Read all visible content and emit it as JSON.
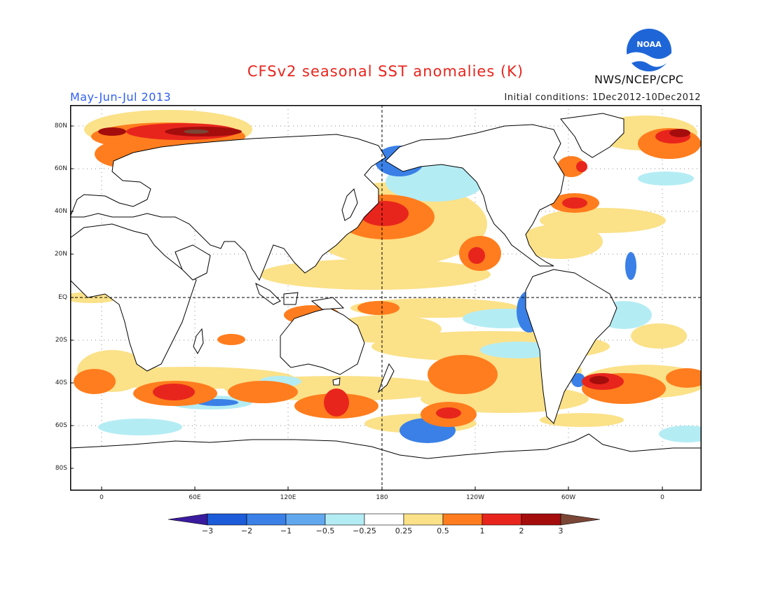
{
  "header": {
    "title": "CFSv2 seasonal SST anomalies (K)",
    "period": "May-Jun-Jul 2013",
    "initial_conditions": "Initial conditions: 1Dec2012-10Dec2012",
    "organization": "NWS/NCEP/CPC",
    "logo_text": "NOAA"
  },
  "map": {
    "lat_labels": [
      "80N",
      "60N",
      "40N",
      "20N",
      "EQ",
      "20S",
      "40S",
      "60S",
      "80S"
    ],
    "lon_labels": [
      "0",
      "60E",
      "120E",
      "180",
      "120W",
      "60W",
      "0"
    ],
    "reference_lines": [
      "EQ",
      "180"
    ]
  },
  "colorbar": {
    "labels": [
      "-3",
      "-2",
      "-1",
      "-0.5",
      "-0.25",
      "0.25",
      "0.5",
      "1",
      "2",
      "3"
    ],
    "colors": [
      "#3a1b9e",
      "#1d5cd8",
      "#3a80e6",
      "#62a8ee",
      "#b4ecf4",
      "#ffffff",
      "#fbe188",
      "#ff7d1e",
      "#e8251d",
      "#a50d0d",
      "#7a4636"
    ],
    "unit": "K"
  }
}
